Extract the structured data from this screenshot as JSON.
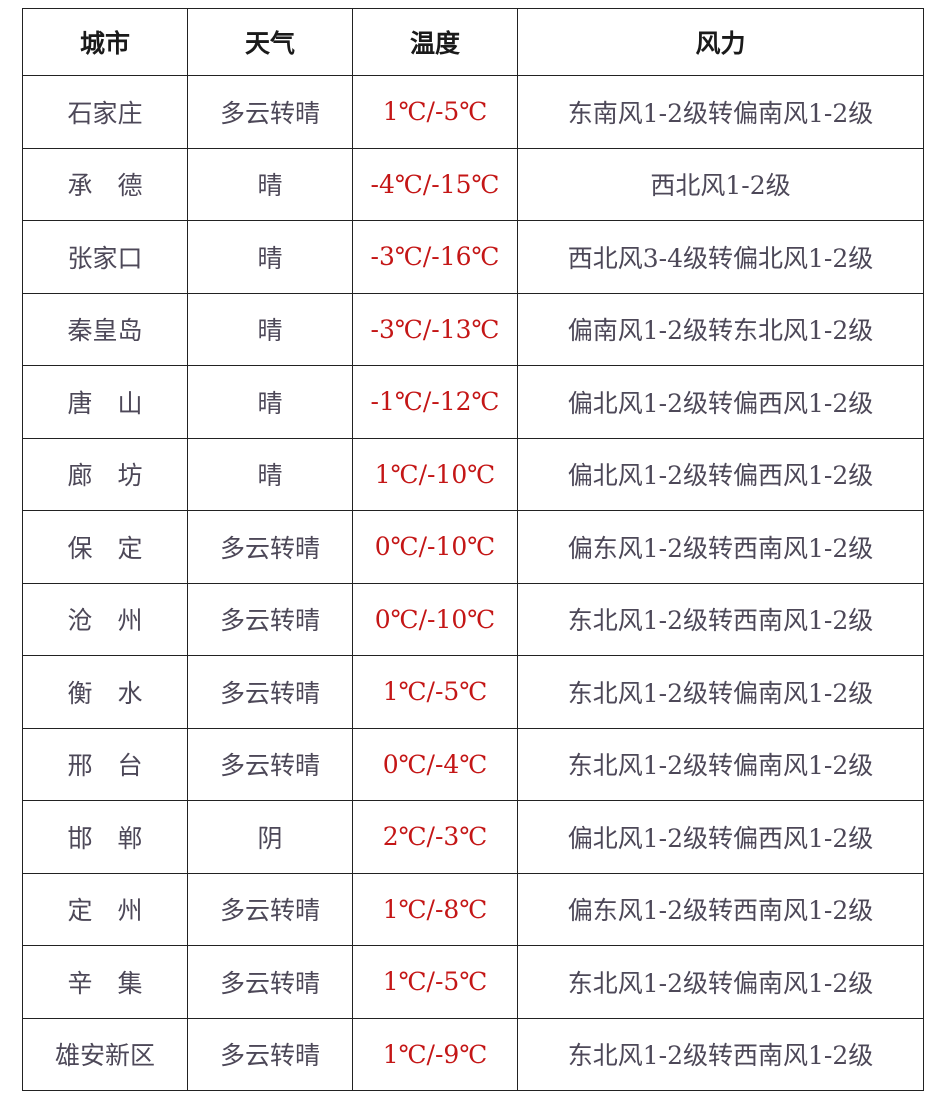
{
  "table": {
    "headers": [
      "城市",
      "天气",
      "温度",
      "风力"
    ],
    "rows": [
      {
        "city": "石家庄",
        "weather": "多云转晴",
        "temp": "1℃/-5℃",
        "wind": "东南风1-2级转偏南风1-2级"
      },
      {
        "city": "承　德",
        "weather": "晴",
        "temp": "-4℃/-15℃",
        "wind": "西北风1-2级"
      },
      {
        "city": "张家口",
        "weather": "晴",
        "temp": "-3℃/-16℃",
        "wind": "西北风3-4级转偏北风1-2级"
      },
      {
        "city": "秦皇岛",
        "weather": "晴",
        "temp": "-3℃/-13℃",
        "wind": "偏南风1-2级转东北风1-2级"
      },
      {
        "city": "唐　山",
        "weather": "晴",
        "temp": "-1℃/-12℃",
        "wind": "偏北风1-2级转偏西风1-2级"
      },
      {
        "city": "廊　坊",
        "weather": "晴",
        "temp": "1℃/-10℃",
        "wind": "偏北风1-2级转偏西风1-2级"
      },
      {
        "city": "保　定",
        "weather": "多云转晴",
        "temp": "0℃/-10℃",
        "wind": "偏东风1-2级转西南风1-2级"
      },
      {
        "city": "沧　州",
        "weather": "多云转晴",
        "temp": "0℃/-10℃",
        "wind": "东北风1-2级转西南风1-2级"
      },
      {
        "city": "衡　水",
        "weather": "多云转晴",
        "temp": "1℃/-5℃",
        "wind": "东北风1-2级转偏南风1-2级"
      },
      {
        "city": "邢　台",
        "weather": "多云转晴",
        "temp": "0℃/-4℃",
        "wind": "东北风1-2级转偏南风1-2级"
      },
      {
        "city": "邯　郸",
        "weather": "阴",
        "temp": "2℃/-3℃",
        "wind": "偏北风1-2级转偏西风1-2级"
      },
      {
        "city": "定　州",
        "weather": "多云转晴",
        "temp": "1℃/-8℃",
        "wind": "偏东风1-2级转西南风1-2级"
      },
      {
        "city": "辛　集",
        "weather": "多云转晴",
        "temp": "1℃/-5℃",
        "wind": "东北风1-2级转偏南风1-2级"
      },
      {
        "city": "雄安新区",
        "weather": "多云转晴",
        "temp": "1℃/-9℃",
        "wind": "东北风1-2级转西南风1-2级"
      }
    ]
  },
  "colors": {
    "text": "#4d4858",
    "temperature": "#c41616",
    "header": "#1a1a1a",
    "border": "#222222"
  }
}
